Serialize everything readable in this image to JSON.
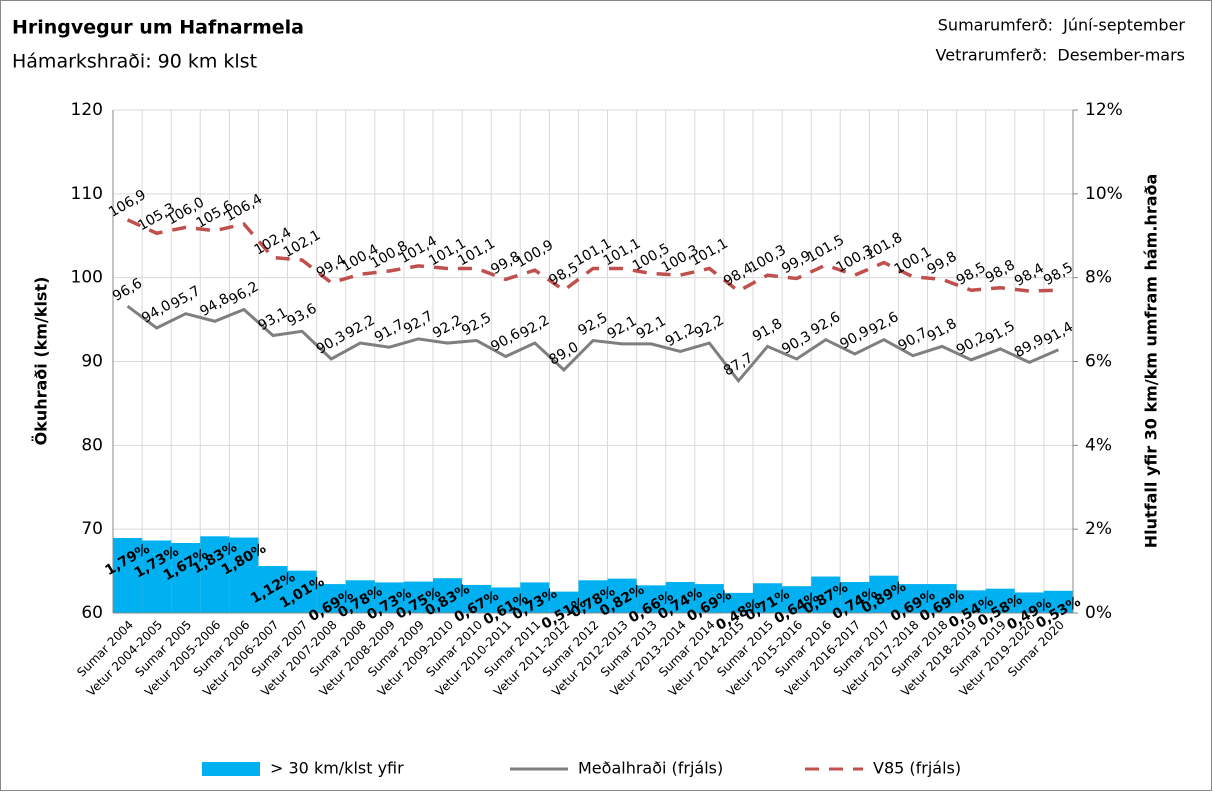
{
  "chart_data": {
    "type": "combo",
    "title": "Hringvegur um Hafnarmela",
    "subtitle": "Hámarkshraði: 90 km klst",
    "annotations": [
      "Sumarumferð:  Júní-september",
      "Vetrarumferð:  Desember-mars"
    ],
    "ylabel": "Ökuhraði (km/klst)",
    "y2label": "Hlutfall yfir 30 km/km umfram hám.hraða",
    "categories": [
      "Sumar 2004",
      "Vetur 2004-2005",
      "Sumar 2005",
      "Vetur 2005-2006",
      "Sumar 2006",
      "Vetur 2006-2007",
      "Sumar 2007",
      "Vetur 2007-2008",
      "Sumar 2008",
      "Vetur 2008-2009",
      "Sumar 2009",
      "Vetur 2009-2010",
      "Sumar 2010",
      "Vetur 2010-2011",
      "Sumar 2011",
      "Vetur 2011-2012",
      "Sumar 2012",
      "Vetur 2012-2013",
      "Sumar 2013",
      "Vetur 2013-2014",
      "Sumar 2014",
      "Vetur 2014-2015",
      "Sumar 2015",
      "Vetur 2015-2016",
      "Sumar 2016",
      "Vetur 2016-2017",
      "Sumar 2017",
      "Vetur 2017-2018",
      "Sumar 2018",
      "Vetur 2018-2019",
      "Sumar 2019",
      "Vetur 2019-2020",
      "Sumar 2020"
    ],
    "ylim": [
      60,
      120
    ],
    "yticks": [
      60,
      70,
      80,
      90,
      100,
      110,
      120
    ],
    "y2lim": [
      0,
      12
    ],
    "y2ticks": [
      {
        "value": 0,
        "label": "0%"
      },
      {
        "value": 2,
        "label": "2%"
      },
      {
        "value": 4,
        "label": "4%"
      },
      {
        "value": 6,
        "label": "6%"
      },
      {
        "value": 8,
        "label": "8%"
      },
      {
        "value": 10,
        "label": "10%"
      },
      {
        "value": 12,
        "label": "12%"
      }
    ],
    "legend": "bottom",
    "series": [
      {
        "name": "> 30 km/klst yfir",
        "type": "bar",
        "axis": "y2",
        "color": "#00b0f0",
        "values": [
          1.79,
          1.73,
          1.67,
          1.83,
          1.8,
          1.12,
          1.01,
          0.69,
          0.78,
          0.73,
          0.75,
          0.83,
          0.67,
          0.61,
          0.73,
          0.51,
          0.78,
          0.82,
          0.66,
          0.74,
          0.69,
          0.48,
          0.71,
          0.64,
          0.87,
          0.74,
          0.89,
          0.69,
          0.69,
          0.54,
          0.58,
          0.49,
          0.53
        ],
        "value_labels": [
          "1,79%",
          "1,73%",
          "1,67%",
          "1,83%",
          "1,80%",
          "1,12%",
          "1,01%",
          "0,69%",
          "0,78%",
          "0,73%",
          "0,75%",
          "0,83%",
          "0,67%",
          "0,61%",
          "0,73%",
          "0,51%",
          "0,78%",
          "0,82%",
          "0,66%",
          "0,74%",
          "0,69%",
          "0,48%",
          "0,71%",
          "0,64%",
          "0,87%",
          "0,74%",
          "0,89%",
          "0,69%",
          "0,69%",
          "0,54%",
          "0,58%",
          "0,49%",
          "0,53%"
        ]
      },
      {
        "name": "Meðalhraði (frjáls)",
        "type": "line",
        "line_style": "solid",
        "color": "#7f7f7f",
        "values": [
          96.6,
          94.0,
          95.7,
          94.8,
          96.2,
          93.1,
          93.6,
          90.3,
          92.2,
          91.7,
          92.7,
          92.2,
          92.5,
          90.6,
          92.2,
          89.0,
          92.5,
          92.1,
          92.1,
          91.2,
          92.2,
          87.7,
          91.8,
          90.3,
          92.6,
          90.9,
          92.6,
          90.7,
          91.8,
          90.2,
          91.5,
          89.9,
          91.4
        ],
        "value_labels": [
          "96,6",
          "94,0",
          "95,7",
          "94,8",
          "96,2",
          "93,1",
          "93,6",
          "90,3",
          "92,2",
          "91,7",
          "92,7",
          "92,2",
          "92,5",
          "90,6",
          "92,2",
          "89,0",
          "92,5",
          "92,1",
          "92,1",
          "91,2",
          "92,2",
          "87,7",
          "91,8",
          "90,3",
          "92,6",
          "90,9",
          "92,6",
          "90,7",
          "91,8",
          "90,2",
          "91,5",
          "89,9",
          "91,4"
        ]
      },
      {
        "name": "V85 (frjáls)",
        "type": "line",
        "line_style": "dashed",
        "color": "#c0504d",
        "values": [
          106.9,
          105.3,
          106.0,
          105.6,
          106.4,
          102.4,
          102.1,
          99.4,
          100.4,
          100.8,
          101.4,
          101.1,
          101.1,
          99.8,
          100.9,
          98.5,
          101.1,
          101.1,
          100.5,
          100.3,
          101.1,
          98.4,
          100.3,
          99.9,
          101.5,
          100.3,
          101.8,
          100.1,
          99.8,
          98.5,
          98.8,
          98.4,
          98.5
        ],
        "value_labels": [
          "106,9",
          "105,3",
          "106,0",
          "105,6",
          "106,4",
          "102,4",
          "102,1",
          "99,4",
          "100,4",
          "100,8",
          "101,4",
          "101,1",
          "101,1",
          "99,8",
          "100,9",
          "98,5",
          "101,1",
          "101,1",
          "100,5",
          "100,3",
          "101,1",
          "98,4",
          "100,3",
          "99,9",
          "101,5",
          "100,3",
          "101,8",
          "100,1",
          "99,8",
          "98,5",
          "98,8",
          "98,4",
          "98,5"
        ]
      }
    ]
  }
}
